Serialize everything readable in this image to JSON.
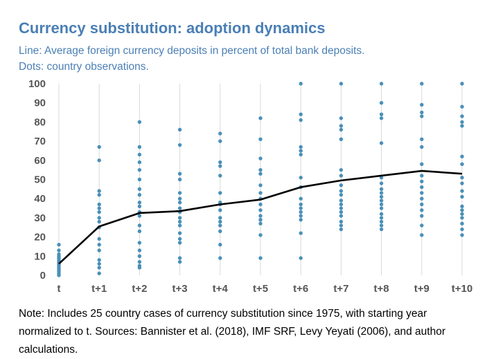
{
  "chart_data": {
    "type": "scatter",
    "title": "Currency substitution: adoption dynamics",
    "subtitle_lines": [
      "Line: Average foreign currency deposits in percent of total bank deposits.",
      "Dots: country observations."
    ],
    "categories": [
      "t",
      "t+1",
      "t+2",
      "t+3",
      "t+4",
      "t+5",
      "t+6",
      "t+7",
      "t+8",
      "t+9",
      "t+10"
    ],
    "y_ticks": [
      "0",
      "10",
      "20",
      "30",
      "40",
      "50",
      "60",
      "70",
      "80",
      "90",
      "100"
    ],
    "ylim": [
      0,
      100
    ],
    "grid": "vertical",
    "line": {
      "name": "Average foreign currency deposits in percent of total bank deposits",
      "values": [
        6,
        25.5,
        32.5,
        33.5,
        37,
        39.5,
        46,
        49.5,
        52,
        54.5,
        53
      ],
      "color": "#000000"
    },
    "dots": {
      "name": "country observations",
      "color": "#4a90b8",
      "values": [
        [
          16,
          13,
          11,
          10,
          9,
          8,
          7,
          6,
          5,
          4,
          3,
          2,
          1,
          0
        ],
        [
          67,
          60,
          44,
          42,
          37,
          35,
          33,
          30,
          28,
          25,
          19,
          16,
          13,
          8,
          6,
          4,
          1
        ],
        [
          80,
          67,
          63,
          59,
          55,
          50,
          45,
          42,
          38,
          36,
          33,
          31,
          26,
          23,
          17,
          13,
          10,
          7,
          5,
          4
        ],
        [
          76,
          68,
          53,
          50,
          43,
          40,
          38,
          35,
          33,
          30,
          28,
          26,
          22,
          19,
          17,
          9,
          7
        ],
        [
          74,
          70,
          59,
          57,
          52,
          43,
          38,
          37,
          34,
          30,
          28,
          26,
          23,
          16,
          9
        ],
        [
          82,
          71,
          61,
          55,
          53,
          47,
          43,
          40,
          37,
          34,
          31,
          29,
          27,
          21,
          9
        ],
        [
          100,
          84,
          81,
          67,
          65,
          63,
          51,
          46,
          40,
          37,
          35,
          33,
          31,
          29,
          22,
          9
        ],
        [
          100,
          82,
          78,
          76,
          71,
          55,
          52,
          47,
          44,
          42,
          39,
          37,
          35,
          33,
          31,
          28,
          26,
          24
        ],
        [
          100,
          90,
          84,
          82,
          69,
          51,
          48,
          45,
          43,
          41,
          39,
          37,
          35,
          32,
          30,
          28,
          26,
          24
        ],
        [
          100,
          89,
          85,
          83,
          71,
          67,
          58,
          52,
          49,
          46,
          43,
          40,
          37,
          34,
          31,
          26,
          21
        ],
        [
          100,
          88,
          83,
          80,
          78,
          62,
          58,
          51,
          48,
          44,
          41,
          36,
          34,
          32,
          30,
          27,
          24,
          21
        ]
      ]
    }
  },
  "note": "Note: Includes 25 country cases of currency substitution since 1975, with starting year normalized to t. Sources: Bannister et al. (2018), IMF SRF, Levy Yeyati (2006), and author calculations."
}
